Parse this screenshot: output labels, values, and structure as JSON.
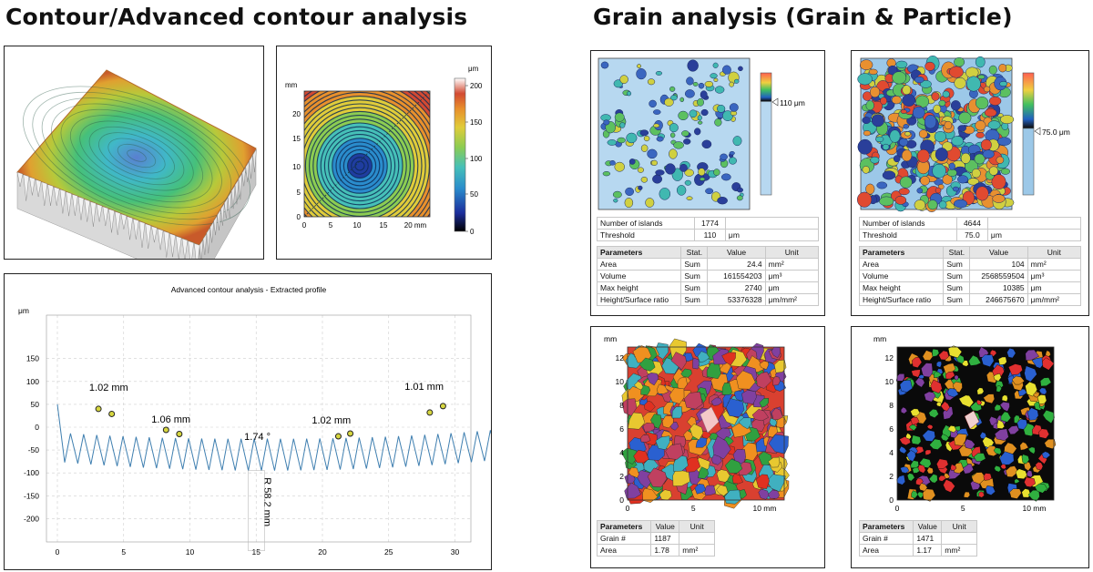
{
  "headings": {
    "contour": "Contour/Advanced contour analysis",
    "grain": "Grain analysis (Grain & Particle)"
  },
  "heatmap": {
    "unit": "μm",
    "x_unit": "mm",
    "y_unit": "mm",
    "scale_ticks": [
      "200",
      "150",
      "100",
      "50",
      "0"
    ],
    "x_ticks": [
      "0",
      "5",
      "10",
      "15",
      "20 mm"
    ],
    "y_ticks": [
      "20",
      "15",
      "10",
      "5",
      "0"
    ]
  },
  "profile": {
    "title": "Advanced contour analysis - Extracted profile",
    "y_unit": "μm",
    "y_ticks": [
      "150",
      "100",
      "50",
      "0",
      "-50",
      "-100",
      "-150",
      "-200"
    ],
    "x_ticks": [
      "0",
      "5",
      "10",
      "15",
      "20",
      "25",
      "30"
    ],
    "annotations": [
      "1.02 mm",
      "1.06 mm",
      "1.74 °",
      "1.02 mm",
      "1.01 mm",
      "R 58.2 mm"
    ]
  },
  "grain_panels": [
    {
      "threshold_label": "110 μm",
      "info": [
        [
          "Number of islands",
          "1774",
          ""
        ],
        [
          "Threshold",
          "110",
          "μm"
        ]
      ],
      "headers": [
        "Parameters",
        "Stat.",
        "Value",
        "Unit"
      ],
      "rows": [
        [
          "Area",
          "Sum",
          "24.4",
          "mm²"
        ],
        [
          "Volume",
          "Sum",
          "161554203",
          "μm³"
        ],
        [
          "Max height",
          "Sum",
          "2740",
          "μm"
        ],
        [
          "Height/Surface ratio",
          "Sum",
          "53376328",
          "μm/mm²"
        ]
      ]
    },
    {
      "threshold_label": "75.0 μm",
      "info": [
        [
          "Number of islands",
          "4644",
          ""
        ],
        [
          "Threshold",
          "75.0",
          "μm"
        ]
      ],
      "headers": [
        "Parameters",
        "Stat.",
        "Value",
        "Unit"
      ],
      "rows": [
        [
          "Area",
          "Sum",
          "104",
          "mm²"
        ],
        [
          "Volume",
          "Sum",
          "2568559504",
          "μm³"
        ],
        [
          "Max height",
          "Sum",
          "10385",
          "μm"
        ],
        [
          "Height/Surface ratio",
          "Sum",
          "246675670",
          "μm/mm²"
        ]
      ]
    }
  ],
  "grain_maps": [
    {
      "unit": "mm",
      "y_ticks": [
        "12",
        "10",
        "8",
        "6",
        "4",
        "2",
        "0"
      ],
      "x_ticks": [
        "0",
        "5",
        "10 mm"
      ],
      "headers": [
        "Parameters",
        "Value",
        "Unit"
      ],
      "rows": [
        [
          "Grain #",
          "1187",
          ""
        ],
        [
          "Area",
          "1.78",
          "mm²"
        ]
      ]
    },
    {
      "unit": "mm",
      "y_ticks": [
        "12",
        "10",
        "8",
        "6",
        "4",
        "2",
        "0"
      ],
      "x_ticks": [
        "0",
        "5",
        "10 mm"
      ],
      "headers": [
        "Parameters",
        "Value",
        "Unit"
      ],
      "rows": [
        [
          "Grain #",
          "1471",
          ""
        ],
        [
          "Area",
          "1.17",
          "mm²"
        ]
      ]
    }
  ]
}
